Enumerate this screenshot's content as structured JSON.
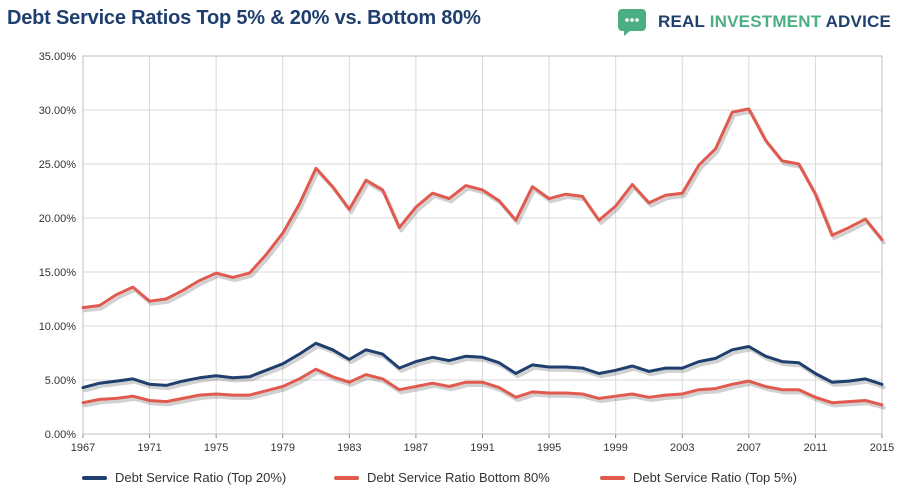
{
  "header": {
    "title": "Debt Service Ratios Top 5% & 20% vs. Bottom 80%",
    "brand_word1": "REAL",
    "brand_word2": "INVESTMENT",
    "brand_word3": "ADVICE",
    "brand_icon": "chat-bubble-icon"
  },
  "colors": {
    "title": "#1f3f6e",
    "brand_green": "#4caf83",
    "top20": "#1f3f6e",
    "bottom80": "#e05a4f",
    "top5": "#e05a4f",
    "grid": "#d9d9d9"
  },
  "chart_data": {
    "type": "line",
    "title": "Debt Service Ratios Top 5% & 20% vs. Bottom 80%",
    "xlabel": "",
    "ylabel": "",
    "xlim": [
      1967,
      2015
    ],
    "ylim": [
      0,
      35
    ],
    "y_ticks": [
      "0.00%",
      "5.00%",
      "10.00%",
      "15.00%",
      "20.00%",
      "25.00%",
      "30.00%",
      "35.00%"
    ],
    "x_ticks": [
      "1967",
      "1971",
      "1975",
      "1979",
      "1983",
      "1987",
      "1991",
      "1995",
      "1999",
      "2003",
      "2007",
      "2011",
      "2015"
    ],
    "grid": true,
    "legend_position": "bottom",
    "x": [
      1967,
      1968,
      1969,
      1970,
      1971,
      1972,
      1973,
      1974,
      1975,
      1976,
      1977,
      1978,
      1979,
      1980,
      1981,
      1982,
      1983,
      1984,
      1985,
      1986,
      1987,
      1988,
      1989,
      1990,
      1991,
      1992,
      1993,
      1994,
      1995,
      1996,
      1997,
      1998,
      1999,
      2000,
      2001,
      2002,
      2003,
      2004,
      2005,
      2006,
      2007,
      2008,
      2009,
      2010,
      2011,
      2012,
      2013,
      2014,
      2015
    ],
    "series": [
      {
        "name": "Debt Service Ratio (Top 20%)",
        "color": "#1f3f6e",
        "values": [
          4.3,
          4.7,
          4.9,
          5.1,
          4.6,
          4.5,
          4.9,
          5.2,
          5.4,
          5.2,
          5.3,
          5.9,
          6.5,
          7.4,
          8.4,
          7.8,
          6.9,
          7.8,
          7.4,
          6.1,
          6.7,
          7.1,
          6.8,
          7.2,
          7.1,
          6.6,
          5.6,
          6.4,
          6.2,
          6.2,
          6.1,
          5.6,
          5.9,
          6.3,
          5.8,
          6.1,
          6.1,
          6.7,
          7.0,
          7.8,
          8.1,
          7.2,
          6.7,
          6.6,
          5.6,
          4.8,
          4.9,
          5.1,
          4.6
        ]
      },
      {
        "name": "Debt Service Ratio Bottom 80%",
        "color": "#e05a4f",
        "values": [
          2.9,
          3.2,
          3.3,
          3.5,
          3.1,
          3.0,
          3.3,
          3.6,
          3.7,
          3.6,
          3.6,
          4.0,
          4.4,
          5.1,
          6.0,
          5.3,
          4.8,
          5.5,
          5.1,
          4.1,
          4.4,
          4.7,
          4.4,
          4.8,
          4.8,
          4.3,
          3.4,
          3.9,
          3.8,
          3.8,
          3.7,
          3.3,
          3.5,
          3.7,
          3.4,
          3.6,
          3.7,
          4.1,
          4.2,
          4.6,
          4.9,
          4.4,
          4.1,
          4.1,
          3.4,
          2.9,
          3.0,
          3.1,
          2.7
        ]
      },
      {
        "name": "Debt Service Ratio (Top 5%)",
        "color": "#e05a4f",
        "values": [
          11.7,
          11.9,
          12.9,
          13.6,
          12.3,
          12.5,
          13.3,
          14.2,
          14.9,
          14.5,
          14.9,
          16.6,
          18.6,
          21.3,
          24.6,
          22.9,
          20.8,
          23.5,
          22.6,
          19.1,
          21.0,
          22.3,
          21.8,
          23.0,
          22.6,
          21.6,
          19.8,
          22.9,
          21.8,
          22.2,
          22.0,
          19.8,
          21.1,
          23.1,
          21.4,
          22.1,
          22.3,
          24.9,
          26.4,
          29.8,
          30.1,
          27.2,
          25.3,
          25.0,
          22.2,
          18.4,
          19.1,
          19.9,
          18.0
        ]
      }
    ]
  }
}
